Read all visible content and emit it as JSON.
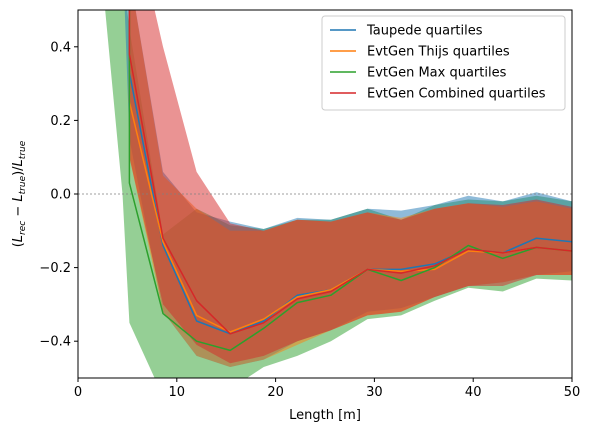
{
  "chart_data": {
    "type": "line",
    "xlabel": "Length [m]",
    "ylabel": "(L_rec − L_true)/L_true",
    "ylabel_parts": {
      "open": "(",
      "l1": "L",
      "sub1": "rec",
      "minus": " − ",
      "l2": "L",
      "sub2": "true",
      "close": ")/",
      "l3": "L",
      "sub3": "true"
    },
    "xlim": [
      0,
      50
    ],
    "ylim": [
      -0.5,
      0.5
    ],
    "xticks": [
      0,
      10,
      20,
      30,
      40,
      50
    ],
    "yticks": [
      -0.4,
      -0.2,
      0.0,
      0.2,
      0.4
    ],
    "reference_line": {
      "y": 0,
      "style": "dashed",
      "color": "#808080"
    },
    "legend": {
      "position": "top-right"
    },
    "series": [
      {
        "name": "Taupede quartiles",
        "color": "#1f77b4",
        "x": [
          5.2,
          8.6,
          12.0,
          15.4,
          18.8,
          22.2,
          25.6,
          29.3,
          32.7,
          36.1,
          39.5,
          43.0,
          46.4,
          50.0
        ],
        "median": [
          0.33,
          -0.14,
          -0.345,
          -0.38,
          -0.345,
          -0.275,
          -0.26,
          -0.205,
          -0.205,
          -0.19,
          -0.15,
          -0.16,
          -0.12,
          -0.13
        ],
        "q1": [
          0.15,
          -0.32,
          -0.44,
          -0.47,
          -0.45,
          -0.4,
          -0.37,
          -0.32,
          -0.31,
          -0.28,
          -0.25,
          -0.24,
          -0.22,
          -0.21
        ],
        "q3": [
          0.6,
          0.06,
          -0.05,
          -0.075,
          -0.095,
          -0.065,
          -0.07,
          -0.04,
          -0.045,
          -0.03,
          -0.005,
          -0.02,
          0.005,
          -0.02
        ]
      },
      {
        "name": "EvtGen Thijs quartiles",
        "color": "#ff7f0e",
        "x": [
          5.2,
          8.6,
          12.0,
          15.4,
          18.8,
          22.2,
          25.6,
          29.3,
          32.7,
          36.1,
          39.5,
          43.0,
          46.4,
          50.0
        ],
        "median": [
          0.25,
          -0.13,
          -0.33,
          -0.375,
          -0.34,
          -0.28,
          -0.26,
          -0.205,
          -0.21,
          -0.205,
          -0.155,
          -0.16,
          -0.145,
          -0.155
        ],
        "q1": [
          0.1,
          -0.32,
          -0.44,
          -0.47,
          -0.45,
          -0.41,
          -0.37,
          -0.33,
          -0.32,
          -0.28,
          -0.25,
          -0.24,
          -0.22,
          -0.22
        ],
        "q3": [
          0.6,
          0.05,
          -0.04,
          -0.1,
          -0.1,
          -0.07,
          -0.075,
          -0.05,
          -0.065,
          -0.04,
          -0.025,
          -0.035,
          -0.02,
          -0.04
        ]
      },
      {
        "name": "EvtGen Max quartiles",
        "color": "#2ca02c",
        "x": [
          5.2,
          8.6,
          12.0,
          15.4,
          18.8,
          22.2,
          25.6,
          29.3,
          32.7,
          36.1,
          39.5,
          43.0,
          46.4,
          50.0
        ],
        "median": [
          0.03,
          -0.325,
          -0.4,
          -0.425,
          -0.365,
          -0.295,
          -0.275,
          -0.205,
          -0.235,
          -0.2,
          -0.14,
          -0.175,
          -0.145,
          -0.155
        ],
        "q1": [
          -0.35,
          -0.55,
          -0.55,
          -0.53,
          -0.47,
          -0.44,
          -0.4,
          -0.34,
          -0.33,
          -0.29,
          -0.255,
          -0.265,
          -0.23,
          -0.235
        ],
        "q3": [
          0.45,
          -0.11,
          -0.04,
          -0.085,
          -0.095,
          -0.07,
          -0.07,
          -0.04,
          -0.07,
          -0.03,
          -0.015,
          -0.02,
          -0.005,
          -0.02
        ]
      },
      {
        "name": "EvtGen Combined quartiles",
        "color": "#d62728",
        "x": [
          5.2,
          8.6,
          12.0,
          15.4,
          18.8,
          22.2,
          25.6,
          29.3,
          32.7,
          36.1,
          39.5,
          43.0,
          46.4,
          50.0
        ],
        "median": [
          0.38,
          -0.12,
          -0.29,
          -0.38,
          -0.35,
          -0.285,
          -0.265,
          -0.205,
          -0.215,
          -0.195,
          -0.15,
          -0.16,
          -0.145,
          -0.155
        ],
        "q1": [
          0.1,
          -0.3,
          -0.41,
          -0.46,
          -0.44,
          -0.4,
          -0.37,
          -0.33,
          -0.32,
          -0.28,
          -0.25,
          -0.25,
          -0.22,
          -0.22
        ],
        "q3": [
          0.8,
          0.4,
          0.06,
          -0.08,
          -0.1,
          -0.07,
          -0.075,
          -0.05,
          -0.07,
          -0.04,
          -0.025,
          -0.03,
          -0.015,
          -0.035
        ]
      }
    ],
    "left_tail": [
      {
        "series": "EvtGen Max quartiles",
        "x": [
          2.4,
          4.5
        ],
        "q3": [
          0.6,
          0.6
        ],
        "q1": [
          0.6,
          0.0
        ]
      },
      {
        "series": "Taupede quartiles",
        "x": [
          4.6
        ],
        "q3": [
          0.6
        ],
        "q1": [
          0.6
        ]
      }
    ]
  }
}
